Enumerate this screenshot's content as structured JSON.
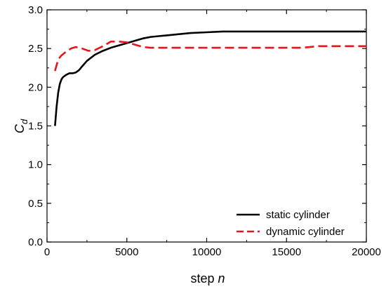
{
  "chart_data": {
    "type": "line",
    "xlabel": {
      "text": "step ",
      "italic": "n"
    },
    "ylabel": {
      "text": "C",
      "subscript": "d"
    },
    "xlim": [
      0,
      20000
    ],
    "ylim": [
      0.0,
      3.0
    ],
    "xticks": [
      0,
      5000,
      10000,
      15000,
      20000
    ],
    "xtick_labels": [
      "0",
      "5000",
      "10000",
      "15000",
      "20000"
    ],
    "yticks": [
      0.0,
      0.5,
      1.0,
      1.5,
      2.0,
      2.5,
      3.0
    ],
    "ytick_labels": [
      "0.0",
      "0.5",
      "1.0",
      "1.5",
      "2.0",
      "2.5",
      "3.0"
    ],
    "grid": false,
    "legend_position": "bottom-right",
    "series": [
      {
        "name": "static cylinder",
        "color": "#000000",
        "style": "solid",
        "x": [
          500,
          600,
          700,
          800,
          900,
          1000,
          1200,
          1400,
          1600,
          1800,
          2000,
          2200,
          2500,
          3000,
          3500,
          4000,
          4500,
          5000,
          5500,
          6000,
          6500,
          7000,
          7500,
          8000,
          9000,
          10000,
          11000,
          12000,
          14000,
          16000,
          18000,
          20000
        ],
        "y": [
          1.5,
          1.75,
          1.93,
          2.04,
          2.1,
          2.13,
          2.16,
          2.18,
          2.18,
          2.19,
          2.22,
          2.27,
          2.34,
          2.42,
          2.47,
          2.51,
          2.54,
          2.57,
          2.6,
          2.63,
          2.65,
          2.66,
          2.67,
          2.68,
          2.7,
          2.71,
          2.72,
          2.72,
          2.72,
          2.72,
          2.72,
          2.72
        ]
      },
      {
        "name": "dynamic cylinder",
        "color": "#e8141b",
        "style": "dashed",
        "x": [
          500,
          700,
          900,
          1200,
          1500,
          1800,
          2200,
          2600,
          3000,
          3500,
          4000,
          4500,
          5000,
          5500,
          6000,
          6500,
          7000,
          8000,
          9000,
          10000,
          12000,
          14000,
          16000,
          16500,
          17000,
          18000,
          19000,
          20000
        ],
        "y": [
          2.21,
          2.36,
          2.41,
          2.46,
          2.5,
          2.52,
          2.5,
          2.47,
          2.48,
          2.53,
          2.59,
          2.59,
          2.58,
          2.55,
          2.52,
          2.51,
          2.51,
          2.51,
          2.51,
          2.51,
          2.51,
          2.51,
          2.51,
          2.52,
          2.53,
          2.53,
          2.53,
          2.53
        ]
      }
    ]
  }
}
